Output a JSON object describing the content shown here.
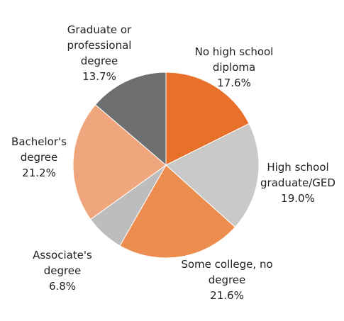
{
  "chart_data": {
    "type": "pie",
    "categories": [
      "No high school diploma",
      "High school graduate/GED",
      "Some college, no degree",
      "Associate's degree",
      "Bachelor's degree",
      "Graduate or professional degree"
    ],
    "values": [
      17.6,
      19.0,
      21.6,
      6.8,
      21.2,
      13.7
    ],
    "value_labels": [
      "17.6%",
      "19.0%",
      "21.6%",
      "6.8%",
      "21.2%",
      "13.7%"
    ],
    "colors": [
      "#e8702a",
      "#c9c9c9",
      "#ec8d50",
      "#bdbdbd",
      "#f0a67c",
      "#6e6f71"
    ]
  }
}
